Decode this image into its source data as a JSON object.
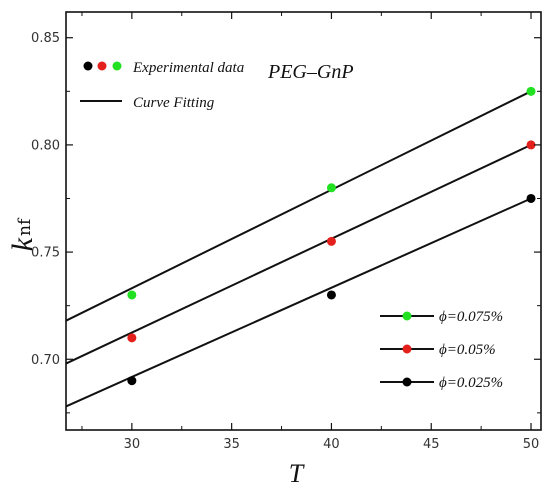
{
  "chart_data": {
    "type": "scatter",
    "xlabel": "T",
    "ylabel": "k",
    "ylabel_sub": "nf",
    "xlim": [
      26.7,
      50.5
    ],
    "ylim": [
      0.667,
      0.862
    ],
    "x_ticks": [
      30,
      35,
      40,
      45,
      50
    ],
    "y_ticks": [
      0.7,
      0.75,
      0.8,
      0.85
    ],
    "annotation": "PEG–GnP",
    "grid": false,
    "legend_top": {
      "markers_label": "Experimental data",
      "line_label": "Curve Fitting",
      "marker_colors": [
        "#000000",
        "#e3201b",
        "#22e022"
      ]
    },
    "legend_bottom_placement": "bottom-right",
    "series": [
      {
        "name": "ϕ=0.075%",
        "color": "#22e022",
        "x": [
          30,
          40,
          50
        ],
        "y": [
          0.73,
          0.78,
          0.825
        ],
        "fit": {
          "x": [
            26.7,
            50.0
          ],
          "y": [
            0.718,
            0.825
          ]
        }
      },
      {
        "name": "ϕ=0.05%",
        "color": "#e3201b",
        "x": [
          30,
          40,
          50
        ],
        "y": [
          0.71,
          0.755,
          0.8
        ],
        "fit": {
          "x": [
            26.7,
            50.0
          ],
          "y": [
            0.698,
            0.8
          ]
        }
      },
      {
        "name": "ϕ=0.025%",
        "color": "#000000",
        "x": [
          30,
          40,
          50
        ],
        "y": [
          0.69,
          0.73,
          0.775
        ],
        "fit": {
          "x": [
            26.7,
            50.0
          ],
          "y": [
            0.678,
            0.775
          ]
        }
      }
    ]
  }
}
